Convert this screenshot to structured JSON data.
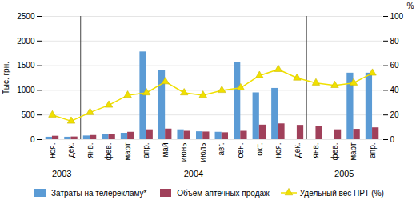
{
  "chart_data": {
    "type": "bar",
    "categories": [
      "ноя.",
      "дек.",
      "янв.",
      "фев.",
      "март",
      "апр.",
      "май",
      "июнь",
      "июль",
      "авг.",
      "сен.",
      "окт.",
      "ноя.",
      "дек.",
      "янв.",
      "фев.",
      "март",
      "апр."
    ],
    "category_groups": [
      {
        "label": "2003",
        "size": 2
      },
      {
        "label": "2004",
        "size": 12
      },
      {
        "label": "2005",
        "size": 4
      }
    ],
    "series": [
      {
        "name": "Затраты на телерекламу*",
        "type": "bar",
        "color": "#5b9bd5",
        "values": [
          50,
          50,
          75,
          100,
          130,
          1780,
          1400,
          200,
          160,
          150,
          1570,
          950,
          1040,
          0,
          0,
          0,
          1350,
          1350
        ]
      },
      {
        "name": "Объем аптечных продаж",
        "type": "bar",
        "color": "#a0405a",
        "values": [
          70,
          55,
          85,
          110,
          150,
          200,
          215,
          170,
          155,
          140,
          170,
          295,
          320,
          290,
          265,
          200,
          210,
          240
        ]
      },
      {
        "name": "Удельный вес ПРТ (%)",
        "type": "line",
        "axis": "y2",
        "color": "#f0e000",
        "marker": "triangle",
        "values": [
          20,
          15,
          22,
          28,
          36,
          38,
          47,
          38,
          36,
          40,
          42,
          52,
          57,
          50,
          46,
          44,
          46,
          54
        ]
      }
    ],
    "ylabel": "Тыс. грн.",
    "y2label": "%",
    "ylim": [
      0,
      2500
    ],
    "yticks": [
      0,
      500,
      1000,
      1500,
      2000,
      2500
    ],
    "y2lim": [
      0,
      100
    ],
    "y2ticks": [
      0,
      20,
      40,
      60,
      80,
      100
    ],
    "grid": true,
    "legend": "bottom"
  }
}
